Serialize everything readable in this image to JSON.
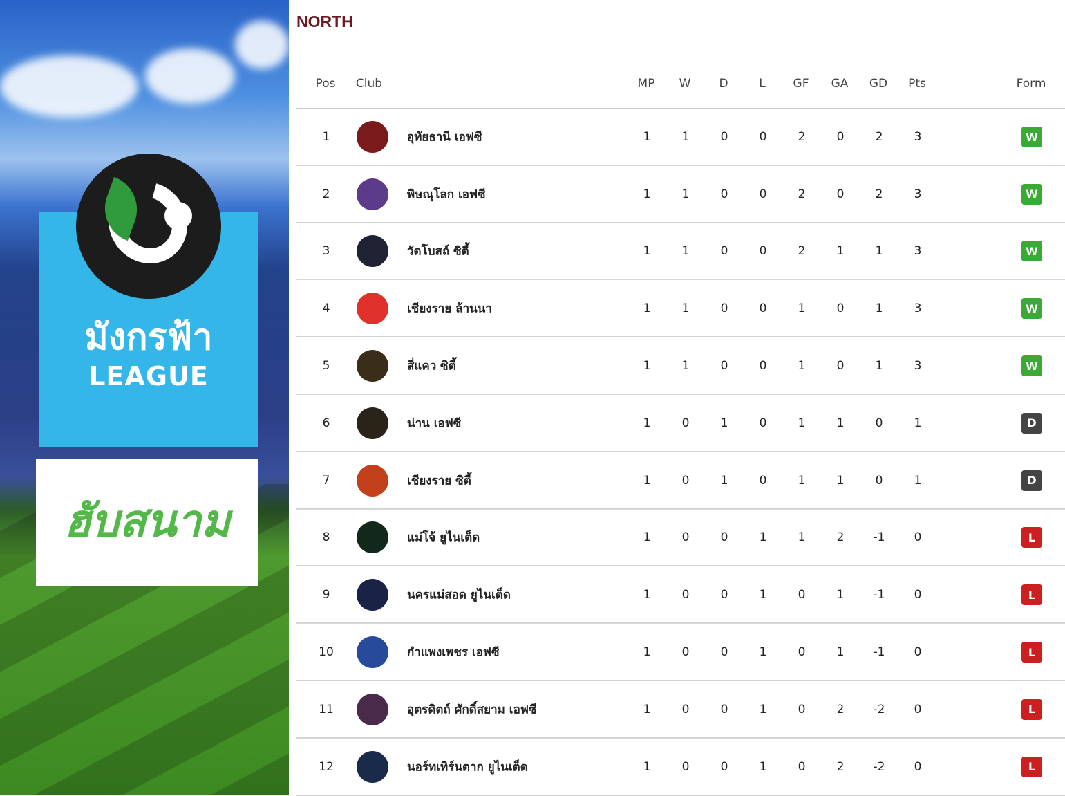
{
  "branding": {
    "logo_text": "มังกรฟ้า",
    "logo_subtext": "LEAGUE",
    "partner_logo_text": "ฮับสนาม"
  },
  "title": "NORTH",
  "columns": {
    "pos": "Pos",
    "club": "Club",
    "mp": "MP",
    "w": "W",
    "d": "D",
    "l": "L",
    "gf": "GF",
    "ga": "GA",
    "gd": "GD",
    "pts": "Pts",
    "form": "Form"
  },
  "colors": {
    "W": "#3aa935",
    "D": "#444444",
    "L": "#cc1f1f",
    "title": "#6b1a22"
  },
  "rows": [
    {
      "pos": "1",
      "club": "อุทัยธานี เอฟซี",
      "mp": "1",
      "w": "1",
      "d": "0",
      "l": "0",
      "gf": "2",
      "ga": "0",
      "gd": "2",
      "pts": "3",
      "form": "W",
      "crest": "#7a1a1a"
    },
    {
      "pos": "2",
      "club": "พิษณุโลก เอฟซี",
      "mp": "1",
      "w": "1",
      "d": "0",
      "l": "0",
      "gf": "2",
      "ga": "0",
      "gd": "2",
      "pts": "3",
      "form": "W",
      "crest": "#5b3b8a"
    },
    {
      "pos": "3",
      "club": "วัดโบสถ์ ซิตี้",
      "mp": "1",
      "w": "1",
      "d": "0",
      "l": "0",
      "gf": "2",
      "ga": "1",
      "gd": "1",
      "pts": "3",
      "form": "W",
      "crest": "#1e2233"
    },
    {
      "pos": "4",
      "club": "เชียงราย ล้านนา",
      "mp": "1",
      "w": "1",
      "d": "0",
      "l": "0",
      "gf": "1",
      "ga": "0",
      "gd": "1",
      "pts": "3",
      "form": "W",
      "crest": "#e0302a"
    },
    {
      "pos": "5",
      "club": "สี่แคว ซิตี้",
      "mp": "1",
      "w": "1",
      "d": "0",
      "l": "0",
      "gf": "1",
      "ga": "0",
      "gd": "1",
      "pts": "3",
      "form": "W",
      "crest": "#3a2e1a"
    },
    {
      "pos": "6",
      "club": "น่าน เอฟซี",
      "mp": "1",
      "w": "0",
      "d": "1",
      "l": "0",
      "gf": "1",
      "ga": "1",
      "gd": "0",
      "pts": "1",
      "form": "D",
      "crest": "#2a2418"
    },
    {
      "pos": "7",
      "club": "เชียงราย ซิตี้",
      "mp": "1",
      "w": "0",
      "d": "1",
      "l": "0",
      "gf": "1",
      "ga": "1",
      "gd": "0",
      "pts": "1",
      "form": "D",
      "crest": "#c2401a"
    },
    {
      "pos": "8",
      "club": "แม่โจ้ ยูไนเต็ด",
      "mp": "1",
      "w": "0",
      "d": "0",
      "l": "1",
      "gf": "1",
      "ga": "2",
      "gd": "-1",
      "pts": "0",
      "form": "L",
      "crest": "#12281a"
    },
    {
      "pos": "9",
      "club": "นครแม่สอด ยูไนเต็ด",
      "mp": "1",
      "w": "0",
      "d": "0",
      "l": "1",
      "gf": "0",
      "ga": "1",
      "gd": "-1",
      "pts": "0",
      "form": "L",
      "crest": "#1a2246"
    },
    {
      "pos": "10",
      "club": "กำแพงเพชร เอฟซี",
      "mp": "1",
      "w": "0",
      "d": "0",
      "l": "1",
      "gf": "0",
      "ga": "1",
      "gd": "-1",
      "pts": "0",
      "form": "L",
      "crest": "#274a9a"
    },
    {
      "pos": "11",
      "club": "อุตรดิตถ์ ศักดิ์สยาม เอฟซี",
      "mp": "1",
      "w": "0",
      "d": "0",
      "l": "1",
      "gf": "0",
      "ga": "2",
      "gd": "-2",
      "pts": "0",
      "form": "L",
      "crest": "#4a2a4a"
    },
    {
      "pos": "12",
      "club": "นอร์ทเทิร์นตาก ยูไนเต็ด",
      "mp": "1",
      "w": "0",
      "d": "0",
      "l": "1",
      "gf": "0",
      "ga": "2",
      "gd": "-2",
      "pts": "0",
      "form": "L",
      "crest": "#1a2a4a"
    }
  ]
}
